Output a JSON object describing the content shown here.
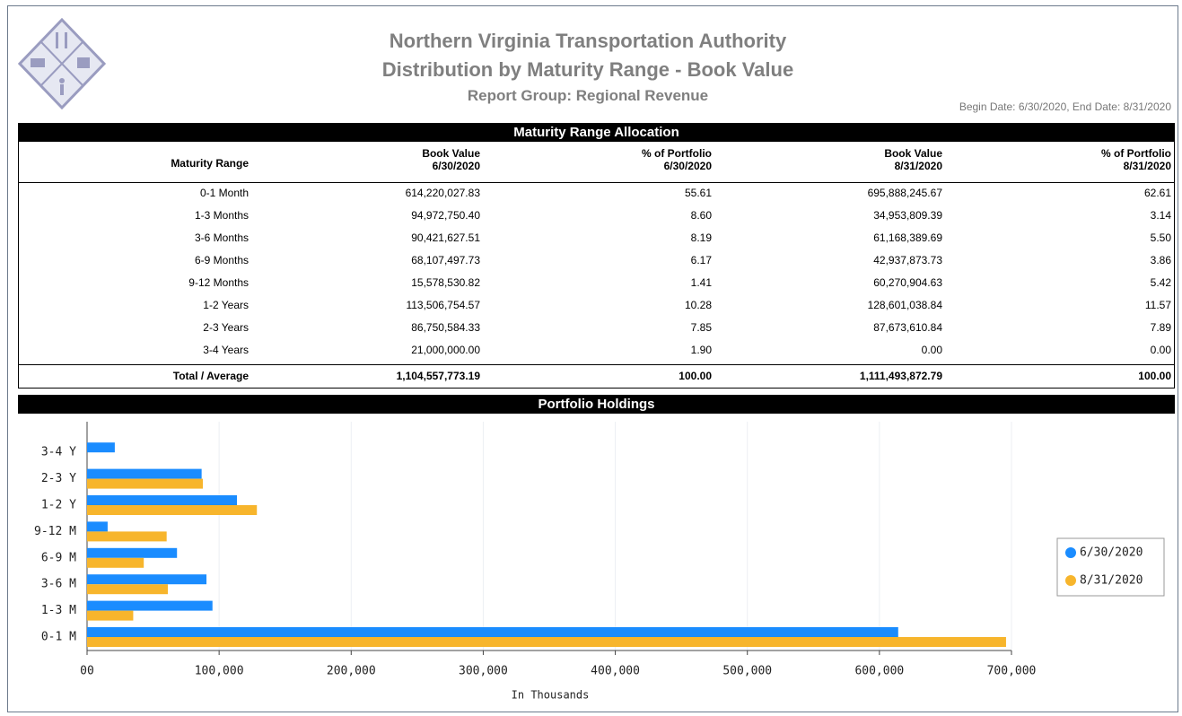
{
  "header": {
    "title": "Northern Virginia Transportation Authority",
    "subtitle": "Distribution by Maturity Range - Book Value",
    "group": "Report Group: Regional Revenue",
    "dates": "Begin Date: 6/30/2020, End Date: 8/31/2020"
  },
  "table": {
    "title": "Maturity Range Allocation",
    "columns": [
      [
        "Maturity Range"
      ],
      [
        "Book Value",
        "6/30/2020"
      ],
      [
        "% of Portfolio",
        "6/30/2020"
      ],
      [
        "Book Value",
        "8/31/2020"
      ],
      [
        "% of Portfolio",
        "8/31/2020"
      ]
    ],
    "rows": [
      [
        "0-1 Month",
        "614,220,027.83",
        "55.61",
        "695,888,245.67",
        "62.61"
      ],
      [
        "1-3 Months",
        "94,972,750.40",
        "8.60",
        "34,953,809.39",
        "3.14"
      ],
      [
        "3-6 Months",
        "90,421,627.51",
        "8.19",
        "61,168,389.69",
        "5.50"
      ],
      [
        "6-9 Months",
        "68,107,497.73",
        "6.17",
        "42,937,873.73",
        "3.86"
      ],
      [
        "9-12 Months",
        "15,578,530.82",
        "1.41",
        "60,270,904.63",
        "5.42"
      ],
      [
        "1-2 Years",
        "113,506,754.57",
        "10.28",
        "128,601,038.84",
        "11.57"
      ],
      [
        "2-3 Years",
        "86,750,584.33",
        "7.85",
        "87,673,610.84",
        "7.89"
      ],
      [
        "3-4 Years",
        "21,000,000.00",
        "1.90",
        "0.00",
        "0.00"
      ]
    ],
    "total": [
      "Total / Average",
      "1,104,557,773.19",
      "100.00",
      "1,111,493,872.79",
      "100.00"
    ]
  },
  "chart_data": {
    "type": "hbar",
    "title": "Portfolio Holdings",
    "xlabel": "In Thousands",
    "categories": [
      "0-1 M",
      "1-3 M",
      "3-6 M",
      "6-9 M",
      "9-12 M",
      "1-2 Y",
      "2-3 Y",
      "3-4 Y"
    ],
    "series": [
      {
        "name": "6/30/2020",
        "color": "#1a8cff",
        "values": [
          614220,
          94973,
          90422,
          68107,
          15579,
          113507,
          86751,
          21000
        ]
      },
      {
        "name": "8/31/2020",
        "color": "#f7b52c",
        "values": [
          695888,
          34954,
          61168,
          42938,
          60271,
          128601,
          87674,
          0
        ]
      }
    ],
    "xlim": [
      0,
      700000
    ],
    "xticks": [
      {
        "value": 0,
        "label": "00"
      },
      {
        "value": 100000,
        "label": "100,000"
      },
      {
        "value": 200000,
        "label": "200,000"
      },
      {
        "value": 300000,
        "label": "300,000"
      },
      {
        "value": 400000,
        "label": "400,000"
      },
      {
        "value": 500000,
        "label": "500,000"
      },
      {
        "value": 600000,
        "label": "600,000"
      },
      {
        "value": 700000,
        "label": "700,000"
      }
    ],
    "grid": true,
    "legend": "right"
  }
}
